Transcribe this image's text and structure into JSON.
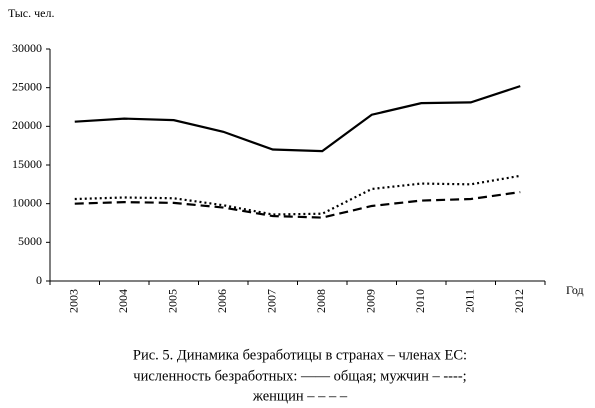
{
  "chart_data": {
    "type": "line",
    "y_label": "Тыс. чел.",
    "x_label": "Год",
    "caption": [
      "Рис. 5. Динамика безработицы в странах – членах ЕС:",
      "численность безработных: —— общая; мужчин – ----;",
      "женщин – – – –"
    ],
    "categories": [
      "2003",
      "2004",
      "2005",
      "2006",
      "2007",
      "2008",
      "2009",
      "2010",
      "2011",
      "2012"
    ],
    "series": [
      {
        "color": "#000000",
        "dash": "solid",
        "values": [
          20600,
          21000,
          20800,
          19300,
          17000,
          16800,
          21500,
          23000,
          23100,
          25200
        ]
      },
      {
        "color": "#000000",
        "dash": "dotted",
        "values": [
          10600,
          10800,
          10700,
          9800,
          8600,
          8700,
          11900,
          12600,
          12500,
          13600
        ]
      },
      {
        "color": "#000000",
        "dash": "dashed",
        "values": [
          10000,
          10200,
          10100,
          9500,
          8400,
          8200,
          9700,
          10400,
          10600,
          11500
        ]
      }
    ],
    "ylim": [
      0,
      30000
    ],
    "yticks": [
      0,
      5000,
      10000,
      15000,
      20000,
      25000,
      30000
    ],
    "grid": false
  }
}
